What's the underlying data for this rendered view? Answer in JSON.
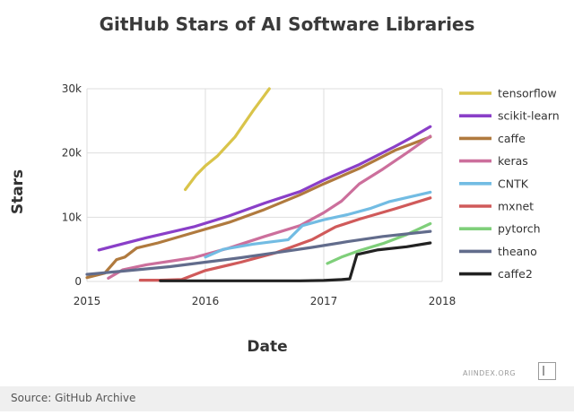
{
  "chart_data": {
    "type": "line",
    "title": "GitHub Stars of AI Software Libraries",
    "xlabel": "Date",
    "ylabel": "Stars",
    "xlim": [
      2015.0,
      2018.0
    ],
    "ylim": [
      0,
      30000
    ],
    "x_ticks": [
      2015,
      2016,
      2017,
      2018
    ],
    "x_tick_labels": [
      "2015",
      "2016",
      "2017",
      "2018"
    ],
    "y_ticks": [
      0,
      10000,
      20000,
      30000
    ],
    "y_tick_labels": [
      "0",
      "10k",
      "20k",
      "30k"
    ],
    "grid": true,
    "legend_position": "right",
    "series": [
      {
        "name": "tensorflow",
        "color": "#d9c44a",
        "points": [
          [
            2015.83,
            14300
          ],
          [
            2015.92,
            16500
          ],
          [
            2016.0,
            18000
          ],
          [
            2016.1,
            19500
          ],
          [
            2016.25,
            22500
          ],
          [
            2016.4,
            26500
          ],
          [
            2016.5,
            29000
          ],
          [
            2016.54,
            30000
          ]
        ]
      },
      {
        "name": "scikit-learn",
        "color": "#8a3fc8",
        "points": [
          [
            2015.1,
            4900
          ],
          [
            2015.5,
            6800
          ],
          [
            2015.9,
            8500
          ],
          [
            2016.2,
            10200
          ],
          [
            2016.5,
            12200
          ],
          [
            2016.8,
            14000
          ],
          [
            2017.0,
            15800
          ],
          [
            2017.3,
            18200
          ],
          [
            2017.6,
            21000
          ],
          [
            2017.75,
            22500
          ],
          [
            2017.9,
            24100
          ]
        ]
      },
      {
        "name": "caffe",
        "color": "#b07a3e",
        "points": [
          [
            2015.0,
            600
          ],
          [
            2015.15,
            1300
          ],
          [
            2015.25,
            3400
          ],
          [
            2015.32,
            3800
          ],
          [
            2015.42,
            5200
          ],
          [
            2015.6,
            6000
          ],
          [
            2015.9,
            7600
          ],
          [
            2016.2,
            9200
          ],
          [
            2016.5,
            11200
          ],
          [
            2016.8,
            13500
          ],
          [
            2017.0,
            15200
          ],
          [
            2017.3,
            17600
          ],
          [
            2017.6,
            20400
          ],
          [
            2017.9,
            22500
          ]
        ]
      },
      {
        "name": "keras",
        "color": "#cc6f9c",
        "points": [
          [
            2015.18,
            500
          ],
          [
            2015.3,
            1800
          ],
          [
            2015.5,
            2600
          ],
          [
            2015.9,
            3700
          ],
          [
            2016.2,
            5200
          ],
          [
            2016.5,
            7000
          ],
          [
            2016.8,
            8700
          ],
          [
            2017.0,
            10700
          ],
          [
            2017.15,
            12500
          ],
          [
            2017.3,
            15200
          ],
          [
            2017.5,
            17500
          ],
          [
            2017.7,
            20000
          ],
          [
            2017.9,
            22600
          ]
        ]
      },
      {
        "name": "CNTK",
        "color": "#72bce3",
        "points": [
          [
            2016.0,
            3800
          ],
          [
            2016.15,
            5000
          ],
          [
            2016.4,
            5800
          ],
          [
            2016.7,
            6500
          ],
          [
            2016.82,
            8700
          ],
          [
            2017.0,
            9600
          ],
          [
            2017.2,
            10400
          ],
          [
            2017.4,
            11400
          ],
          [
            2017.55,
            12400
          ],
          [
            2017.9,
            13900
          ]
        ]
      },
      {
        "name": "mxnet",
        "color": "#d05a5a",
        "points": [
          [
            2015.45,
            200
          ],
          [
            2015.62,
            200
          ],
          [
            2015.8,
            300
          ],
          [
            2016.0,
            1700
          ],
          [
            2016.3,
            3000
          ],
          [
            2016.6,
            4500
          ],
          [
            2016.9,
            6500
          ],
          [
            2017.1,
            8500
          ],
          [
            2017.3,
            9700
          ],
          [
            2017.6,
            11300
          ],
          [
            2017.9,
            13000
          ]
        ]
      },
      {
        "name": "pytorch",
        "color": "#7fcf7a",
        "points": [
          [
            2017.03,
            2800
          ],
          [
            2017.15,
            3800
          ],
          [
            2017.3,
            4800
          ],
          [
            2017.5,
            5900
          ],
          [
            2017.7,
            7300
          ],
          [
            2017.9,
            9000
          ]
        ]
      },
      {
        "name": "theano",
        "color": "#626c8c",
        "points": [
          [
            2015.0,
            1100
          ],
          [
            2015.3,
            1600
          ],
          [
            2015.7,
            2300
          ],
          [
            2016.0,
            3000
          ],
          [
            2016.3,
            3700
          ],
          [
            2016.6,
            4500
          ],
          [
            2016.9,
            5300
          ],
          [
            2017.2,
            6200
          ],
          [
            2017.5,
            7000
          ],
          [
            2017.9,
            7800
          ]
        ]
      },
      {
        "name": "caffe2",
        "color": "#222222",
        "points": [
          [
            2015.62,
            100
          ],
          [
            2016.0,
            100
          ],
          [
            2016.5,
            100
          ],
          [
            2016.8,
            100
          ],
          [
            2017.0,
            150
          ],
          [
            2017.15,
            300
          ],
          [
            2017.22,
            400
          ],
          [
            2017.28,
            4200
          ],
          [
            2017.45,
            4900
          ],
          [
            2017.7,
            5400
          ],
          [
            2017.9,
            6000
          ]
        ]
      }
    ]
  },
  "footer": {
    "source": "Source: GitHub Archive",
    "brand": "AIINDEX.ORG"
  }
}
